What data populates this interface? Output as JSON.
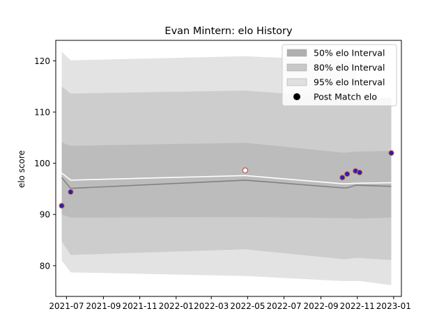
{
  "chart_data": {
    "type": "line",
    "title": "Evan Mintern: elo History",
    "xlabel": "",
    "ylabel": "elo score",
    "x_ticks": [
      "2021-07",
      "2021-09",
      "2021-11",
      "2022-01",
      "2022-03",
      "2022-05",
      "2022-07",
      "2022-09",
      "2022-11",
      "2023-01"
    ],
    "y_ticks": [
      80,
      90,
      100,
      110,
      120
    ],
    "xlim": [
      "2021-06-13",
      "2023-01-14"
    ],
    "ylim": [
      74,
      124
    ],
    "grid": false,
    "legend_position": "top-right",
    "x": [
      "2021-06-23",
      "2021-07-08",
      "2022-04-27",
      "2022-10-07",
      "2022-10-15",
      "2022-10-29",
      "2022-11-05",
      "2022-12-28"
    ],
    "series": [
      {
        "name": "95% elo Interval",
        "kind": "band",
        "color": "#e3e3e3",
        "lower": [
          81,
          78.7,
          78.0,
          77.0,
          77.0,
          77.0,
          77.0,
          76.2
        ],
        "upper": [
          121.8,
          120.1,
          120.9,
          120.1,
          119.9,
          119.9,
          111.0,
          111.8
        ]
      },
      {
        "name": "80% elo Interval",
        "kind": "band",
        "color": "#cdcdcd",
        "lower": [
          84.8,
          82.1,
          83.2,
          81.3,
          81.3,
          81.5,
          81.5,
          81.1
        ],
        "upper": [
          115,
          113.6,
          114.2,
          112.8,
          112.7,
          112.5,
          112.6,
          112.8
        ]
      },
      {
        "name": "50% elo Interval",
        "kind": "band",
        "color": "#bcbcbc",
        "lower": [
          90.0,
          89.4,
          89.5,
          89.3,
          89.3,
          89.2,
          89.2,
          89.4
        ],
        "upper": [
          104.1,
          103.4,
          104.0,
          102.1,
          102.1,
          102.3,
          102.3,
          102.4
        ]
      },
      {
        "name": "",
        "kind": "line",
        "color": "#808080",
        "values": [
          97.2,
          95.1,
          96.7,
          95.2,
          95.2,
          95.7,
          95.7,
          95.5
        ]
      },
      {
        "name": "",
        "kind": "line",
        "color": "#ffffff",
        "values": [
          98.1,
          96.7,
          97.6,
          96.0,
          96.0,
          96.1,
          96.1,
          96.2
        ]
      }
    ],
    "post_match": {
      "name": "Post Match elo",
      "points": [
        {
          "x": "2021-06-23",
          "y": 91.7,
          "fill": "#1f1fcf"
        },
        {
          "x": "2021-07-08",
          "y": 94.4,
          "fill": "#1f1fcf"
        },
        {
          "x": "2022-04-27",
          "y": 98.6,
          "fill": "#ffffff"
        },
        {
          "x": "2022-10-07",
          "y": 97.2,
          "fill": "#1f1fcf"
        },
        {
          "x": "2022-10-15",
          "y": 97.9,
          "fill": "#1f1fcf"
        },
        {
          "x": "2022-10-29",
          "y": 98.5,
          "fill": "#1f1fcf"
        },
        {
          "x": "2022-11-05",
          "y": 98.2,
          "fill": "#1f1fcf"
        },
        {
          "x": "2022-12-28",
          "y": 102.0,
          "fill": "#1f1fcf"
        }
      ]
    }
  },
  "legend": {
    "items": [
      {
        "label": "50% elo Interval",
        "color": "#b0b0b0",
        "kind": "patch"
      },
      {
        "label": "80% elo Interval",
        "color": "#c8c8c8",
        "kind": "patch"
      },
      {
        "label": "95% elo Interval",
        "color": "#e0e0e0",
        "kind": "patch"
      },
      {
        "label": "Post Match elo",
        "color": "#000000",
        "kind": "marker"
      }
    ]
  }
}
